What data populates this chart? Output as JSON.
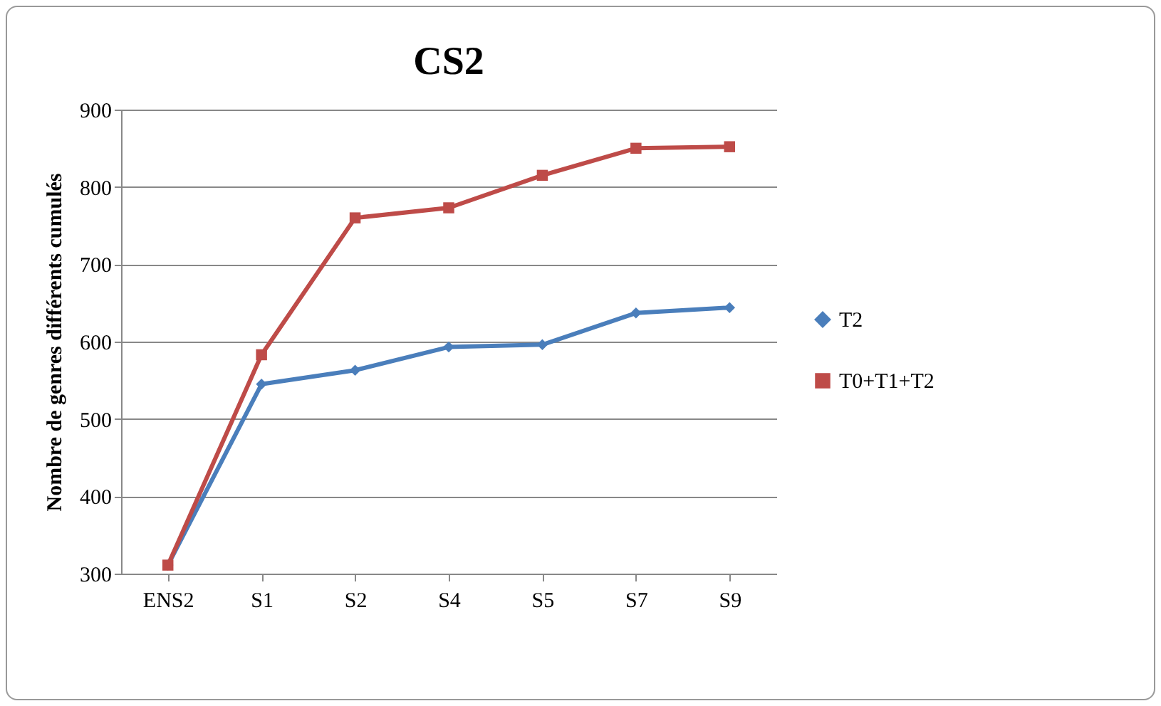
{
  "chart_data": {
    "type": "line",
    "title": "CS2",
    "ylabel": "Nombre de genres différents cumulés",
    "categories": [
      "ENS2",
      "S1",
      "S2",
      "S4",
      "S5",
      "S7",
      "S9"
    ],
    "series": [
      {
        "name": "T2",
        "color": "#4a7ebb",
        "marker": "diamond",
        "values": [
          311,
          545,
          563,
          593,
          596,
          637,
          644
        ]
      },
      {
        "name": "T0+T1+T2",
        "color": "#be4b48",
        "marker": "square",
        "values": [
          311,
          583,
          760,
          773,
          815,
          850,
          852
        ]
      }
    ],
    "ylim": [
      300,
      900
    ],
    "yticks": [
      300,
      400,
      500,
      600,
      700,
      800,
      900
    ],
    "grid": "y",
    "legend": "right"
  }
}
